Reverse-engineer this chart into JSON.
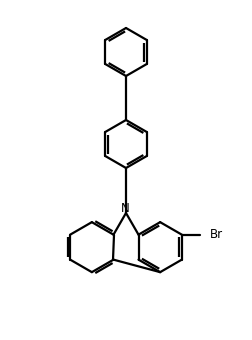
{
  "bg_color": "#ffffff",
  "line_color": "#000000",
  "lw": 1.6,
  "figsize": [
    2.52,
    3.4
  ],
  "dpi": 100,
  "N_fontsize": 8.5,
  "Br_fontsize": 8.5
}
